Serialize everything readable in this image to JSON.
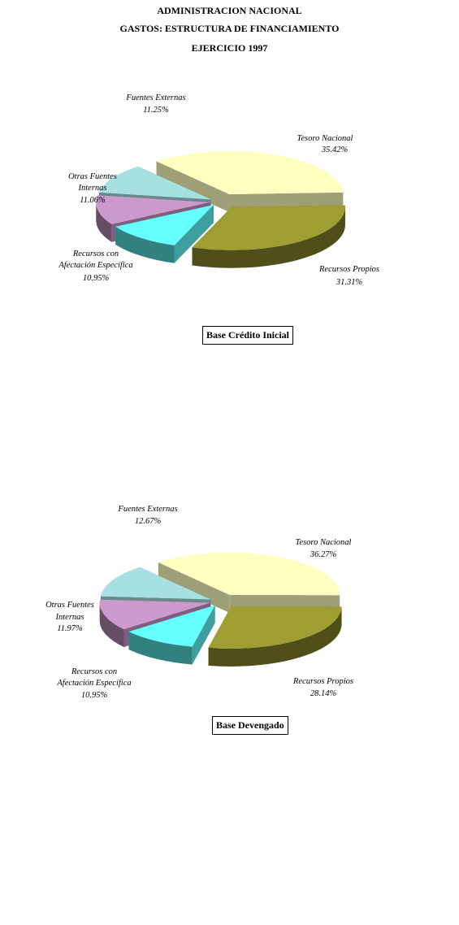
{
  "header": {
    "line1": "ADMINISTRACION NACIONAL",
    "line2": "GASTOS: ESTRUCTURA DE FINANCIAMIENTO",
    "line3": "EJERCICIO 1997"
  },
  "colors": {
    "tesoro_nacional": "#FFFFC0",
    "recursos_propios": "#9E9E32",
    "recursos_afectacion": "#66FFFF",
    "otras_fuentes_internas": "#CC99CC",
    "fuentes_externas": "#A6E0E0"
  },
  "chart_data": [
    {
      "type": "pie",
      "title": "Base Crédito Inicial",
      "slices": [
        {
          "label": "Tesoro Nacional",
          "value": 35.42,
          "value_label": "35.42%"
        },
        {
          "label": "Recursos Propios",
          "value": 31.31,
          "value_label": "31.31%"
        },
        {
          "label": "Recursos con Afectación Específica",
          "value": 10.95,
          "value_label": "10.95%"
        },
        {
          "label": "Otras Fuentes Internas",
          "value": 11.06,
          "value_label": "11.06%"
        },
        {
          "label": "Fuentes Externas",
          "value": 11.25,
          "value_label": "11.25%"
        }
      ]
    },
    {
      "type": "pie",
      "title": "Base Devengado",
      "slices": [
        {
          "label": "Tesoro Nacional",
          "value": 36.27,
          "value_label": "36.27%"
        },
        {
          "label": "Recursos Propios",
          "value": 28.14,
          "value_label": "28.14%"
        },
        {
          "label": "Recursos con Afectación Específica",
          "value": 10.95,
          "value_label": "10.95%"
        },
        {
          "label": "Otras Fuentes Internas",
          "value": 11.97,
          "value_label": "11.97%"
        },
        {
          "label": "Fuentes Externas",
          "value": 12.67,
          "value_label": "12.67%"
        }
      ]
    }
  ]
}
